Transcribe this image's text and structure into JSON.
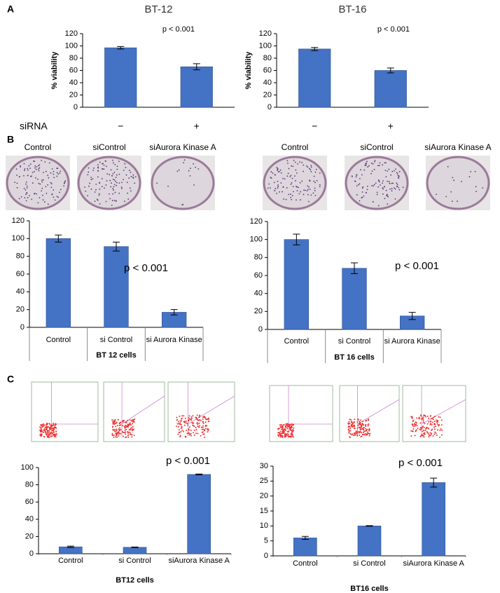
{
  "panel_labels": [
    "A",
    "B",
    "C"
  ],
  "row_label": "siRNA",
  "plates": [
    [
      "Control",
      "siControl",
      "siAurora Kinase A"
    ],
    [
      "Control",
      "siControl",
      "siAurora Kinase A"
    ]
  ],
  "chart_data": [
    {
      "type": "bar",
      "title": "BT-12",
      "y_label": "% viability",
      "categories": [
        "−",
        "+"
      ],
      "values": [
        97,
        66
      ],
      "errors": [
        2,
        5
      ],
      "annotation": "p < 0.001",
      "ylim": [
        0,
        120
      ],
      "yticks": [
        0,
        20,
        40,
        60,
        80,
        100,
        120
      ],
      "color": "#4472c4"
    },
    {
      "type": "bar",
      "title": "BT-16",
      "y_label": "% viability",
      "categories": [
        "−",
        "+"
      ],
      "values": [
        95,
        60
      ],
      "errors": [
        2.5,
        4
      ],
      "annotation": "p < 0.001",
      "ylim": [
        0,
        120
      ],
      "yticks": [
        0,
        20,
        40,
        60,
        80,
        100,
        120
      ],
      "color": "#4472c4"
    },
    {
      "type": "bar",
      "x_label": "BT 12 cells",
      "categories": [
        "Control",
        "si Control",
        "si Aurora Kinase"
      ],
      "values": [
        100,
        91,
        17
      ],
      "errors": [
        4,
        5,
        3
      ],
      "annotation": "p < 0.001",
      "ylim": [
        0,
        120
      ],
      "yticks": [
        0,
        20,
        40,
        60,
        80,
        100,
        120
      ],
      "color": "#4472c4"
    },
    {
      "type": "bar",
      "x_label": "BT 16 cells",
      "categories": [
        "Control",
        "si Control",
        "si Aurora Kinase"
      ],
      "values": [
        100,
        68,
        15
      ],
      "errors": [
        6,
        6,
        4
      ],
      "annotation": "p < 0.001",
      "ylim": [
        0,
        120
      ],
      "yticks": [
        0,
        20,
        40,
        60,
        80,
        100,
        120
      ],
      "color": "#4472c4"
    },
    {
      "type": "bar",
      "x_label": "BT12 cells",
      "categories": [
        "Control",
        "si Control",
        "siAurora Kinase A"
      ],
      "values": [
        8,
        7.5,
        92
      ],
      "errors": [
        0.8,
        0.3,
        0.5
      ],
      "annotation": "p < 0.001",
      "ylim": [
        0,
        100
      ],
      "yticks": [
        0,
        20,
        40,
        60,
        80,
        100
      ],
      "color": "#4472c4"
    },
    {
      "type": "bar",
      "x_label": "BT16 cells",
      "categories": [
        "Control",
        "si Control",
        "siAurora Kinase A"
      ],
      "values": [
        6,
        10,
        24.5
      ],
      "errors": [
        0.5,
        0.1,
        1.5
      ],
      "annotation": "p < 0.001",
      "ylim": [
        0,
        30
      ],
      "yticks": [
        0,
        5,
        10,
        15,
        20,
        25,
        30
      ],
      "color": "#4472c4"
    }
  ]
}
